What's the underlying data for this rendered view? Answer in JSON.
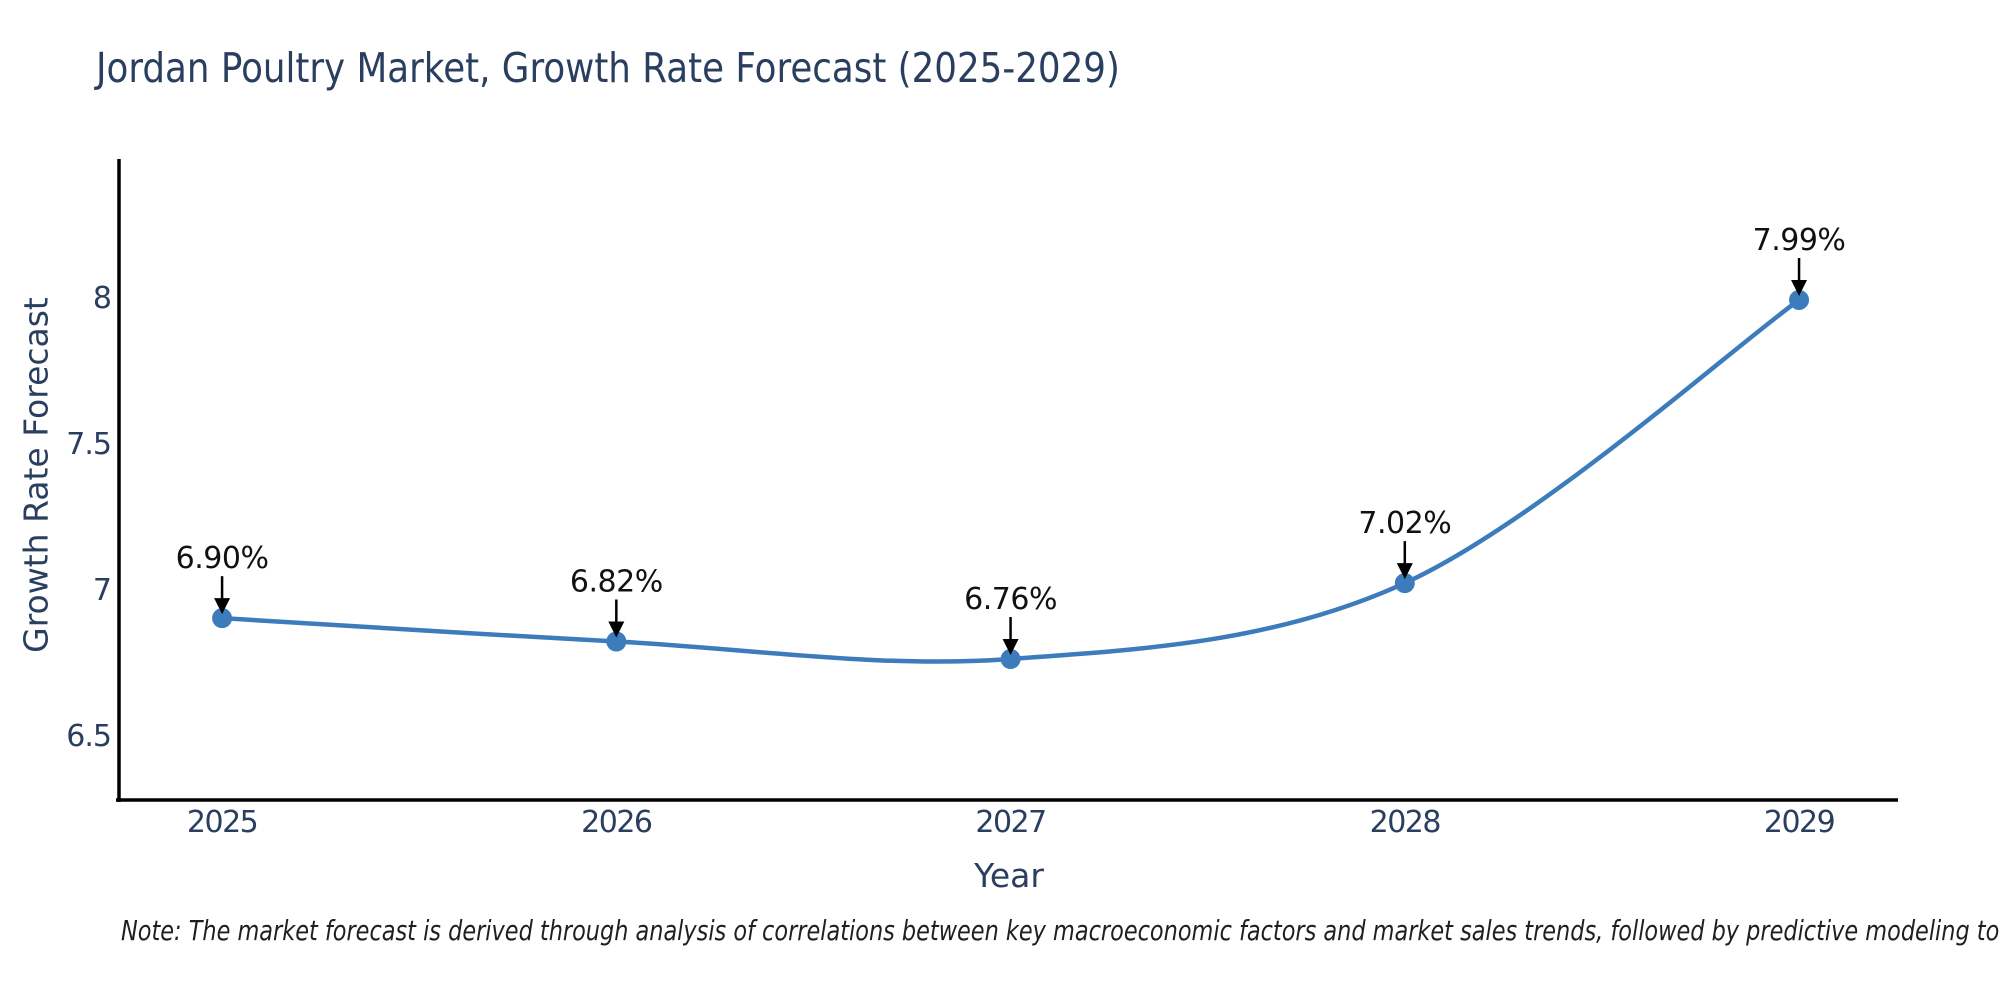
{
  "title": "Jordan Poultry Market, Growth Rate Forecast (2025-2029)",
  "note": "Note: The market forecast is derived through analysis of correlations between key macroeconomic factors and market sales trends, followed by predictive modeling to project future sales",
  "chart_data": {
    "type": "line",
    "title": "Jordan Poultry Market, Growth Rate Forecast (2025-2029)",
    "xlabel": "Year",
    "ylabel": "Growth Rate Forecast",
    "x": [
      2025,
      2026,
      2027,
      2028,
      2029
    ],
    "x_tick_labels": [
      "2025",
      "2026",
      "2027",
      "2028",
      "2029"
    ],
    "series": [
      {
        "name": "Growth Rate Forecast",
        "values": [
          6.9,
          6.82,
          6.76,
          7.02,
          7.99
        ],
        "point_labels": [
          "6.90%",
          "6.82%",
          "6.76%",
          "7.02%",
          "7.99%"
        ]
      }
    ],
    "y_ticks": [
      6.5,
      7,
      7.5,
      8
    ],
    "y_tick_labels": [
      "6.5",
      "7",
      "7.5",
      "8"
    ],
    "xlim": [
      2024.736,
      2029.251
    ],
    "ylim": [
      6.277,
      8.473
    ],
    "grid": false,
    "legend_position": "none",
    "line_shape": "spline",
    "annotation_style": "arrow-down-to-point",
    "colors": {
      "line": "#3C7CBC",
      "marker": "#3C7CBC",
      "axis": "#000000",
      "axis_text": "#2a3f5f",
      "title_text": "#2a3f5f",
      "annotation_text": "#111111",
      "annotation_arrow": "#000000",
      "background": "#ffffff"
    }
  }
}
